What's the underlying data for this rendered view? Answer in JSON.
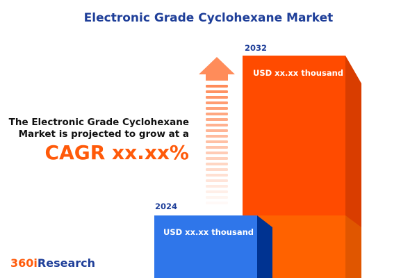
{
  "title": "Electronic Grade Cyclohexane Market",
  "description_line1": "The Electronic Grade Cyclohexane",
  "description_line2": "Market is projected to grow at a",
  "cagr": "CAGR xx.xx%",
  "logo": {
    "part1": "360i",
    "part2": "Research"
  },
  "colors": {
    "title": "#1f3f99",
    "accent": "#ff5a0a",
    "bar_2024": "#2f76ea",
    "bar_2032": "#ff4b00",
    "arrow": "#ff8c5a"
  },
  "icons": {
    "growth": "up-arrow-icon"
  },
  "chart_data": {
    "type": "bar",
    "categories": [
      "2024",
      "2032"
    ],
    "value_labels": [
      "USD xx.xx thousand",
      "USD xx.xx thousand"
    ],
    "title": "Electronic Grade Cyclohexane Market"
  }
}
